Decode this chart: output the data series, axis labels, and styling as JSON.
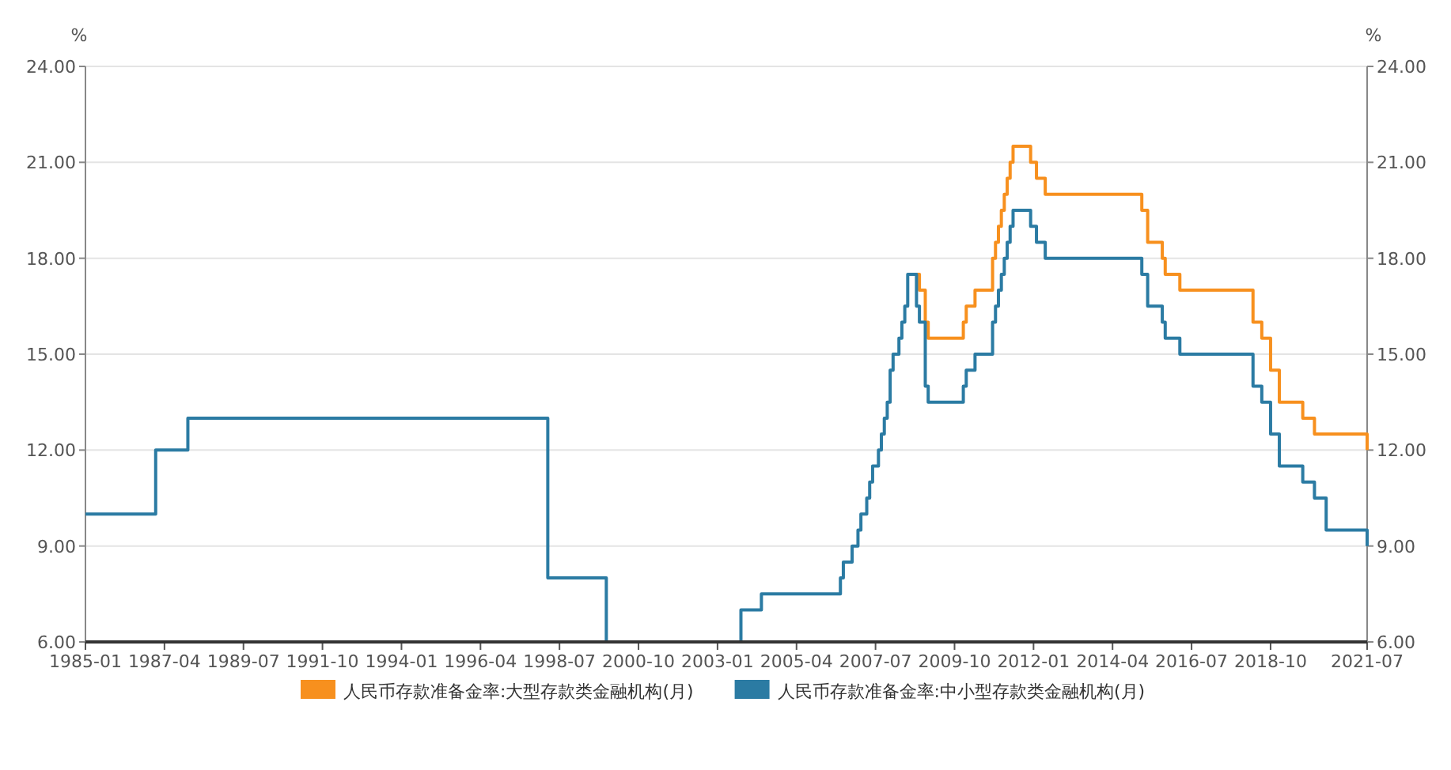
{
  "chart_data": {
    "type": "step",
    "ylabel": "%",
    "y2label": "%",
    "xlim": [
      "1985-01",
      "2021-07"
    ],
    "xticks": [
      "1985-01",
      "1987-04",
      "1989-07",
      "1991-10",
      "1994-01",
      "1996-04",
      "1998-07",
      "2000-10",
      "2003-01",
      "2005-04",
      "2007-07",
      "2009-10",
      "2012-01",
      "2014-04",
      "2016-07",
      "2018-10",
      "2021-07"
    ],
    "ylim": [
      6,
      24
    ],
    "yticks": [
      {
        "value": 6,
        "label": "6.00"
      },
      {
        "value": 9,
        "label": "9.00"
      },
      {
        "value": 12,
        "label": "12.00"
      },
      {
        "value": 15,
        "label": "15.00"
      },
      {
        "value": 18,
        "label": "18.00"
      },
      {
        "value": 21,
        "label": "21.00"
      },
      {
        "value": 24,
        "label": "24.00"
      }
    ],
    "y2lim": [
      6,
      24
    ],
    "y2ticks": [
      {
        "value": 6,
        "label": "6.00"
      },
      {
        "value": 9,
        "label": "9.00"
      },
      {
        "value": 12,
        "label": "12.00"
      },
      {
        "value": 15,
        "label": "15.00"
      },
      {
        "value": 18,
        "label": "18.00"
      },
      {
        "value": 21,
        "label": "21.00"
      },
      {
        "value": 24,
        "label": "24.00"
      }
    ],
    "grid": "y",
    "legend": "bottom",
    "line_style": "solid",
    "series": [
      {
        "name": "人民币存款准备金率:大型存款类金融机构(月)",
        "color": "#f7901e",
        "x": [
          "2008-09",
          "2008-10",
          "2008-12",
          "2009-01",
          "2010-01",
          "2010-02",
          "2010-05",
          "2010-11",
          "2010-12",
          "2011-01",
          "2011-02",
          "2011-03",
          "2011-04",
          "2011-05",
          "2011-06",
          "2011-12",
          "2012-02",
          "2012-05",
          "2015-02",
          "2015-04",
          "2015-09",
          "2015-10",
          "2016-03",
          "2018-04",
          "2018-07",
          "2018-10",
          "2019-01",
          "2019-09",
          "2020-01",
          "2021-07"
        ],
        "values": [
          17.5,
          17,
          16,
          15.5,
          16,
          16.5,
          17,
          18,
          18.5,
          19,
          19.5,
          20,
          20.5,
          21,
          21.5,
          21,
          20.5,
          20,
          19.5,
          18.5,
          18,
          17.5,
          17,
          16,
          15.5,
          14.5,
          13.5,
          13,
          12.5,
          12
        ]
      },
      {
        "name": "人民币存款准备金率:中小型存款类金融机构(月)",
        "color": "#2b7ba3",
        "x": [
          "1985-01",
          "1987-01",
          "1987-12",
          "1998-03",
          "1999-11",
          "2003-09",
          "2004-04",
          "2006-07",
          "2006-08",
          "2006-11",
          "2007-01",
          "2007-02",
          "2007-04",
          "2007-05",
          "2007-06",
          "2007-08",
          "2007-09",
          "2007-10",
          "2007-11",
          "2007-12",
          "2008-01",
          "2008-03",
          "2008-04",
          "2008-05",
          "2008-06",
          "2008-09",
          "2008-10",
          "2008-12",
          "2009-01",
          "2010-01",
          "2010-02",
          "2010-05",
          "2010-11",
          "2010-12",
          "2011-01",
          "2011-02",
          "2011-03",
          "2011-04",
          "2011-05",
          "2011-06",
          "2011-12",
          "2012-02",
          "2012-05",
          "2015-02",
          "2015-04",
          "2015-09",
          "2015-10",
          "2016-03",
          "2018-04",
          "2018-07",
          "2018-10",
          "2019-01",
          "2019-09",
          "2020-01",
          "2020-05",
          "2021-07"
        ],
        "values": [
          10,
          12,
          13,
          8,
          6,
          7,
          7.5,
          8,
          8.5,
          9,
          9.5,
          10,
          10.5,
          11,
          11.5,
          12,
          12.5,
          13,
          13.5,
          14.5,
          15,
          15.5,
          16,
          16.5,
          17.5,
          16.5,
          16,
          14,
          13.5,
          14,
          14.5,
          15,
          16,
          16.5,
          17,
          17.5,
          18,
          18.5,
          19,
          19.5,
          19,
          18.5,
          18,
          17.5,
          16.5,
          16,
          15.5,
          15,
          14,
          13.5,
          12.5,
          11.5,
          11,
          10.5,
          9.5,
          9
        ]
      }
    ]
  }
}
